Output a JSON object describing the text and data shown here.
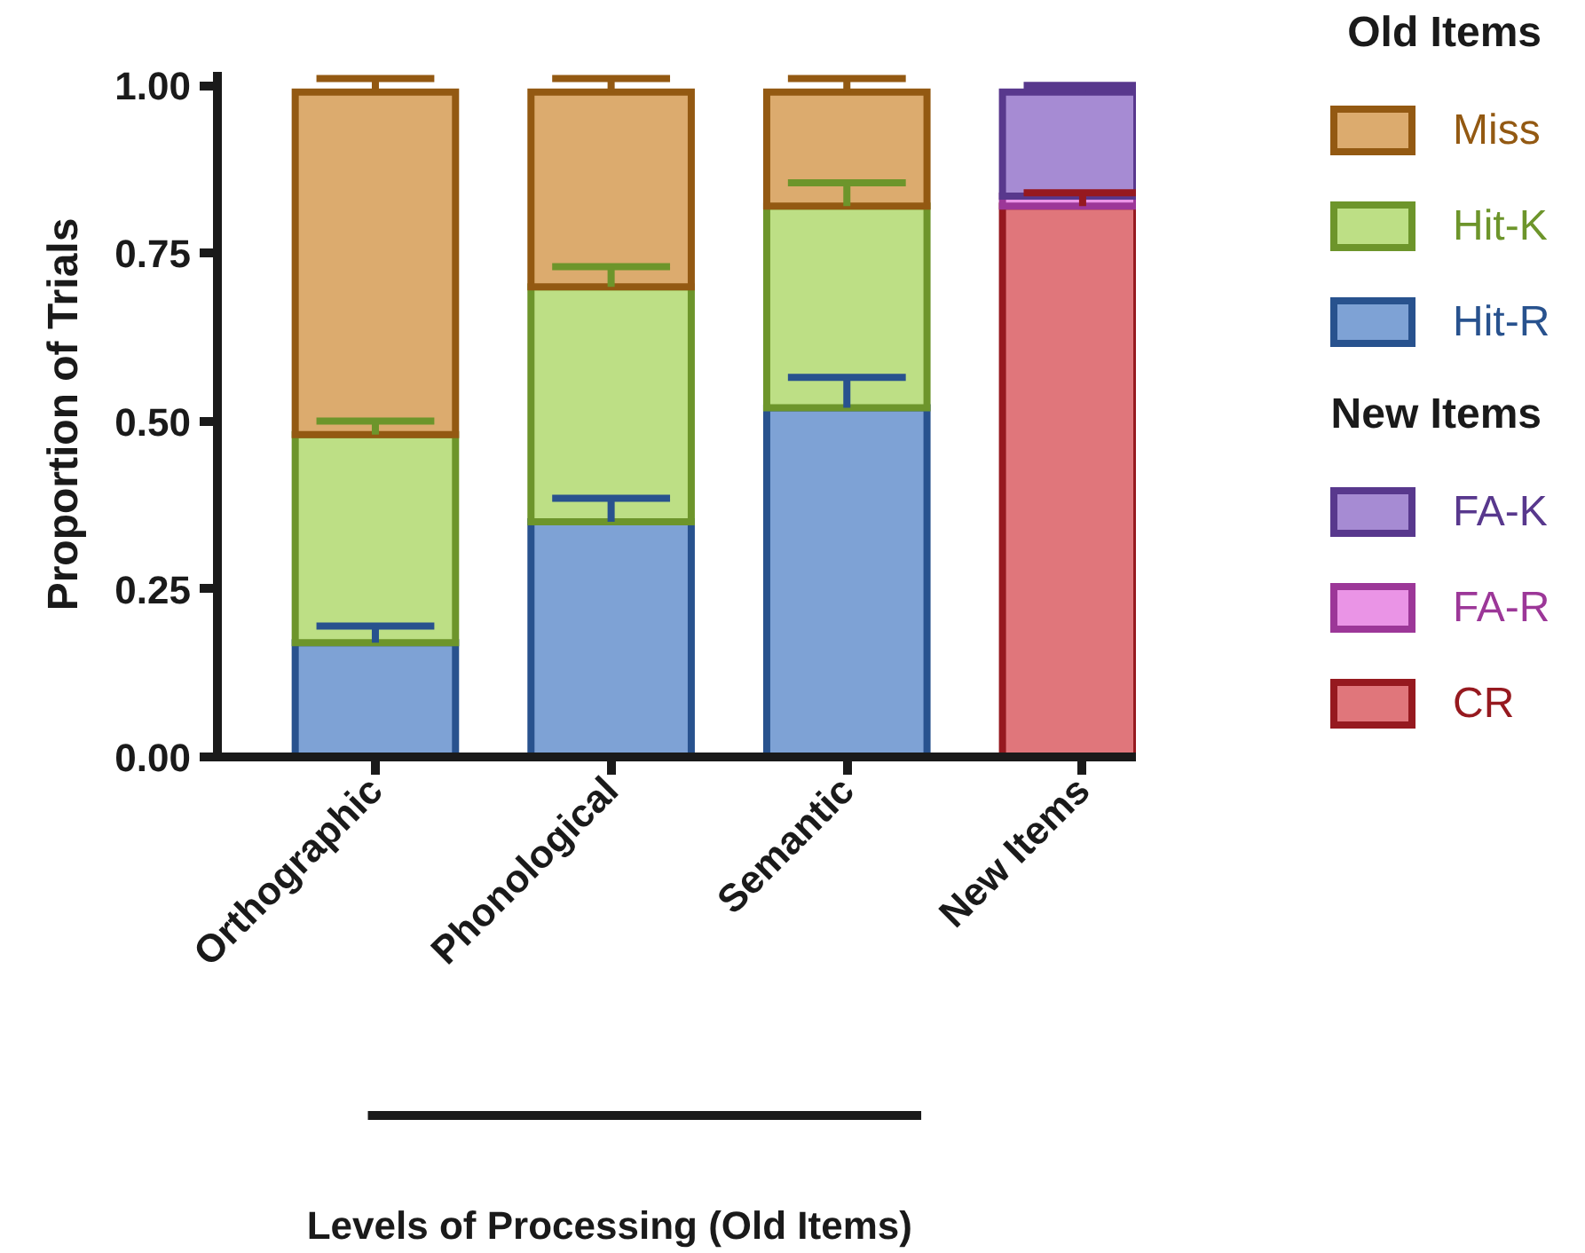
{
  "chart_data": {
    "type": "bar",
    "stacked": true,
    "categories": [
      "Orthographic",
      "Phonological",
      "Semantic",
      "New Items"
    ],
    "ylabel": "Proportion of Trials",
    "ylim": [
      0,
      1.02
    ],
    "yticks": [
      {
        "value": 0,
        "label": "0.00"
      },
      {
        "value": 0.25,
        "label": "0.25"
      },
      {
        "value": 0.5,
        "label": "0.50"
      },
      {
        "value": 0.75,
        "label": "0.75"
      },
      {
        "value": 1,
        "label": "1.00"
      }
    ],
    "grid": false,
    "legend": "right",
    "annotations": [
      "Old Items",
      "New Items",
      "Levels of Processing (Old Items)"
    ],
    "series": [
      {
        "name": "Hit-R",
        "color": "#7ea2d5",
        "values": [
          0.17,
          0.35,
          0.52,
          null
        ],
        "errors": [
          [
            0.17,
            0.195
          ],
          [
            0.35,
            0.385
          ],
          [
            0.52,
            0.565
          ],
          null
        ]
      },
      {
        "name": "Hit-K",
        "color": "#bddf85",
        "values": [
          0.31,
          0.35,
          0.3,
          null
        ],
        "errors": [
          [
            0.48,
            0.5
          ],
          [
            0.7,
            0.73
          ],
          [
            0.82,
            0.855
          ],
          null
        ]
      },
      {
        "name": "Miss",
        "color": "#dcab6e",
        "values": [
          0.51,
          0.29,
          0.17,
          null
        ],
        "errors": [
          [
            0.99,
            1.01
          ],
          [
            0.99,
            1.01
          ],
          [
            0.99,
            1.01
          ],
          null
        ]
      },
      {
        "name": "CR",
        "color": "#e0767b",
        "values": [
          null,
          null,
          null,
          0.82
        ],
        "errors": [
          null,
          null,
          null,
          [
            0.82,
            0.84
          ]
        ]
      },
      {
        "name": "FA-R",
        "color": "#ea94e6",
        "values": [
          null,
          null,
          null,
          0.015
        ],
        "errors": [
          null,
          null,
          null,
          null
        ]
      },
      {
        "name": "FA-K",
        "color": "#a68bd3",
        "values": [
          null,
          null,
          null,
          0.155
        ],
        "errors": [
          null,
          null,
          null,
          [
            0.99,
            1.0
          ]
        ]
      }
    ]
  }
}
